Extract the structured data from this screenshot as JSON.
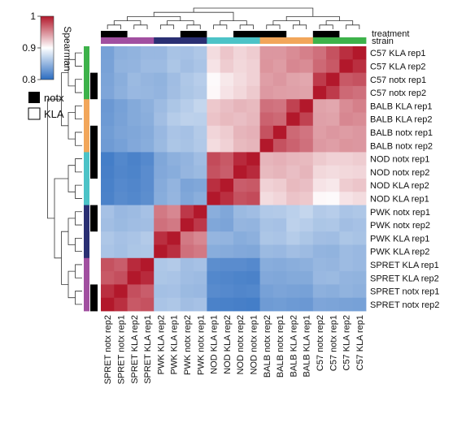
{
  "chart_data": {
    "type": "heatmap",
    "title": "",
    "colorbar": {
      "label": "Spearman",
      "min": 0.8,
      "max": 1,
      "ticks": [
        {
          "label": "1",
          "value": 1.0
        },
        {
          "label": "0.9",
          "value": 0.9
        },
        {
          "label": "0.8",
          "value": 0.8
        }
      ],
      "low_color": "#2b6cc0",
      "mid_color": "#ffffff",
      "high_color": "#b2182b"
    },
    "legend": {
      "position": "left",
      "items": [
        {
          "label": "notx",
          "color": "#000000"
        },
        {
          "label": "KLA",
          "color": "#ffffff"
        }
      ]
    },
    "annotation_labels": {
      "treatment": "treatment",
      "strain": "strain"
    },
    "row_labels": [
      "C57 KLA rep1",
      "C57 KLA rep2",
      "C57 notx rep1",
      "C57 notx rep2",
      "BALB KLA rep1",
      "BALB KLA rep2",
      "BALB notx rep1",
      "BALB notx rep2",
      "NOD notx rep1",
      "NOD notx rep2",
      "NOD KLA rep2",
      "NOD KLA rep1",
      "PWK notx rep1",
      "PWK notx rep2",
      "PWK KLA rep1",
      "PWK KLA rep2",
      "SPRET KLA rep1",
      "SPRET KLA rep2",
      "SPRET notx rep1",
      "SPRET notx rep2"
    ],
    "col_labels": [
      "SPRET notx rep2",
      "SPRET notx rep1",
      "SPRET KLA rep2",
      "SPRET KLA rep1",
      "PWK KLA rep2",
      "PWK KLA rep1",
      "PWK notx rep2",
      "PWK notx rep1",
      "NOD KLA rep1",
      "NOD KLA rep2",
      "NOD notx rep2",
      "NOD notx rep1",
      "BALB notx rep2",
      "BALB notx rep1",
      "BALB KLA rep2",
      "BALB KLA rep1",
      "C57 notx rep2",
      "C57 notx rep1",
      "C57 KLA rep2",
      "C57 KLA rep1"
    ],
    "strain_colors": {
      "C57": "#3db24a",
      "BALB": "#f2a65a",
      "NOD": "#4cc3c7",
      "PWK": "#2a2f73",
      "SPRET": "#a14fa0"
    },
    "col_strain": [
      "SPRET",
      "SPRET",
      "SPRET",
      "SPRET",
      "PWK",
      "PWK",
      "PWK",
      "PWK",
      "NOD",
      "NOD",
      "NOD",
      "NOD",
      "BALB",
      "BALB",
      "BALB",
      "BALB",
      "C57",
      "C57",
      "C57",
      "C57"
    ],
    "col_treatment": [
      "notx",
      "notx",
      "KLA",
      "KLA",
      "KLA",
      "KLA",
      "notx",
      "notx",
      "KLA",
      "KLA",
      "notx",
      "notx",
      "notx",
      "notx",
      "KLA",
      "KLA",
      "notx",
      "notx",
      "KLA",
      "KLA"
    ],
    "row_strain": [
      "C57",
      "C57",
      "C57",
      "C57",
      "BALB",
      "BALB",
      "BALB",
      "BALB",
      "NOD",
      "NOD",
      "NOD",
      "NOD",
      "PWK",
      "PWK",
      "PWK",
      "PWK",
      "SPRET",
      "SPRET",
      "SPRET",
      "SPRET"
    ],
    "row_treatment": [
      "KLA",
      "KLA",
      "notx",
      "notx",
      "KLA",
      "KLA",
      "notx",
      "notx",
      "notx",
      "notx",
      "KLA",
      "KLA",
      "notx",
      "notx",
      "KLA",
      "KLA",
      "KLA",
      "KLA",
      "notx",
      "notx"
    ],
    "values": [
      [
        0.836,
        0.846,
        0.848,
        0.852,
        0.852,
        0.859,
        0.858,
        0.862,
        0.915,
        0.925,
        0.918,
        0.922,
        0.945,
        0.945,
        0.95,
        0.955,
        0.962,
        0.975,
        0.99,
        1.0
      ],
      [
        0.837,
        0.848,
        0.849,
        0.854,
        0.854,
        0.861,
        0.856,
        0.86,
        0.912,
        0.922,
        0.917,
        0.92,
        0.946,
        0.943,
        0.952,
        0.95,
        0.965,
        0.972,
        1.0,
        0.99
      ],
      [
        0.838,
        0.845,
        0.853,
        0.85,
        0.848,
        0.855,
        0.862,
        0.866,
        0.902,
        0.91,
        0.915,
        0.92,
        0.942,
        0.945,
        0.94,
        0.938,
        0.985,
        1.0,
        0.972,
        0.975
      ],
      [
        0.839,
        0.846,
        0.852,
        0.851,
        0.849,
        0.856,
        0.861,
        0.864,
        0.903,
        0.912,
        0.917,
        0.923,
        0.944,
        0.942,
        0.941,
        0.94,
        1.0,
        0.985,
        0.965,
        0.962
      ],
      [
        0.83,
        0.836,
        0.842,
        0.846,
        0.854,
        0.861,
        0.866,
        0.872,
        0.924,
        0.928,
        0.932,
        0.93,
        0.962,
        0.96,
        0.982,
        1.0,
        0.94,
        0.938,
        0.95,
        0.955
      ],
      [
        0.831,
        0.837,
        0.842,
        0.845,
        0.856,
        0.865,
        0.869,
        0.868,
        0.926,
        0.93,
        0.928,
        0.931,
        0.968,
        0.965,
        1.0,
        0.982,
        0.941,
        0.94,
        0.952,
        0.95
      ],
      [
        0.833,
        0.838,
        0.84,
        0.843,
        0.852,
        0.86,
        0.858,
        0.864,
        0.918,
        0.922,
        0.932,
        0.934,
        0.975,
        1.0,
        0.965,
        0.96,
        0.942,
        0.945,
        0.943,
        0.945
      ],
      [
        0.832,
        0.836,
        0.841,
        0.844,
        0.853,
        0.861,
        0.859,
        0.863,
        0.915,
        0.92,
        0.93,
        0.932,
        1.0,
        0.975,
        0.968,
        0.962,
        0.944,
        0.942,
        0.946,
        0.945
      ],
      [
        0.812,
        0.819,
        0.815,
        0.82,
        0.84,
        0.846,
        0.849,
        0.855,
        0.978,
        0.972,
        0.992,
        1.0,
        0.932,
        0.934,
        0.931,
        0.93,
        0.923,
        0.92,
        0.92,
        0.922
      ],
      [
        0.813,
        0.818,
        0.816,
        0.822,
        0.841,
        0.844,
        0.85,
        0.853,
        0.975,
        0.97,
        1.0,
        0.992,
        0.93,
        0.932,
        0.928,
        0.932,
        0.917,
        0.915,
        0.917,
        0.918
      ],
      [
        0.814,
        0.82,
        0.818,
        0.822,
        0.843,
        0.849,
        0.838,
        0.84,
        0.99,
        1.0,
        0.97,
        0.972,
        0.92,
        0.922,
        0.93,
        0.928,
        0.912,
        0.91,
        0.922,
        0.925
      ],
      [
        0.815,
        0.821,
        0.819,
        0.823,
        0.844,
        0.85,
        0.84,
        0.845,
        1.0,
        0.99,
        0.975,
        0.978,
        0.915,
        0.918,
        0.926,
        0.924,
        0.903,
        0.902,
        0.912,
        0.915
      ],
      [
        0.858,
        0.852,
        0.854,
        0.858,
        0.958,
        0.952,
        0.986,
        1.0,
        0.845,
        0.84,
        0.853,
        0.855,
        0.863,
        0.864,
        0.868,
        0.872,
        0.864,
        0.866,
        0.86,
        0.862
      ],
      [
        0.856,
        0.853,
        0.855,
        0.856,
        0.962,
        0.958,
        1.0,
        0.986,
        0.84,
        0.838,
        0.85,
        0.849,
        0.859,
        0.858,
        0.869,
        0.866,
        0.861,
        0.862,
        0.856,
        0.858
      ],
      [
        0.862,
        0.858,
        0.86,
        0.864,
        0.99,
        1.0,
        0.958,
        0.952,
        0.85,
        0.849,
        0.844,
        0.846,
        0.861,
        0.86,
        0.865,
        0.861,
        0.856,
        0.855,
        0.861,
        0.859
      ],
      [
        0.86,
        0.857,
        0.861,
        0.862,
        1.0,
        0.99,
        0.962,
        0.958,
        0.844,
        0.843,
        0.841,
        0.84,
        0.853,
        0.852,
        0.856,
        0.854,
        0.849,
        0.848,
        0.854,
        0.852
      ],
      [
        0.975,
        0.97,
        0.992,
        1.0,
        0.862,
        0.864,
        0.856,
        0.858,
        0.823,
        0.822,
        0.822,
        0.82,
        0.844,
        0.843,
        0.845,
        0.846,
        0.851,
        0.85,
        0.854,
        0.852
      ],
      [
        0.972,
        0.976,
        1.0,
        0.992,
        0.861,
        0.86,
        0.855,
        0.854,
        0.819,
        0.818,
        0.816,
        0.815,
        0.841,
        0.84,
        0.842,
        0.842,
        0.852,
        0.853,
        0.849,
        0.848
      ],
      [
        0.99,
        1.0,
        0.976,
        0.97,
        0.857,
        0.858,
        0.853,
        0.852,
        0.821,
        0.82,
        0.818,
        0.819,
        0.836,
        0.838,
        0.837,
        0.836,
        0.846,
        0.845,
        0.848,
        0.846
      ],
      [
        1.0,
        0.99,
        0.972,
        0.975,
        0.86,
        0.862,
        0.856,
        0.858,
        0.815,
        0.814,
        0.813,
        0.812,
        0.832,
        0.833,
        0.831,
        0.83,
        0.839,
        0.838,
        0.837,
        0.836
      ]
    ]
  }
}
